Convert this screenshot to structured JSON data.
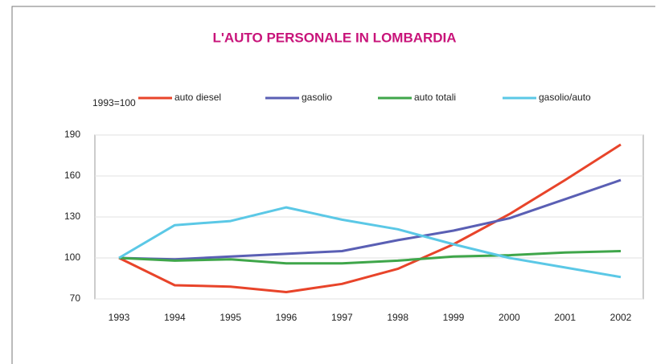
{
  "chart_data": {
    "type": "line",
    "title": "L'AUTO PERSONALE IN LOMBARDIA",
    "y_label": "1993=100",
    "categories": [
      "1993",
      "1994",
      "1995",
      "1996",
      "1997",
      "1998",
      "1999",
      "2000",
      "2001",
      "2002"
    ],
    "series": [
      {
        "name": "auto diesel",
        "color": "#e8442a",
        "values": [
          100,
          80,
          79,
          75,
          81,
          92,
          110,
          132,
          157,
          183
        ]
      },
      {
        "name": "gasolio",
        "color": "#5a5fb4",
        "values": [
          100,
          99,
          101,
          103,
          105,
          113,
          120,
          129,
          143,
          157
        ]
      },
      {
        "name": "auto totali",
        "color": "#3fa64a",
        "values": [
          100,
          98,
          99,
          96,
          96,
          98,
          101,
          102,
          104,
          105
        ]
      },
      {
        "name": "gasolio/auto",
        "color": "#5bc8e6",
        "values": [
          100,
          124,
          127,
          137,
          128,
          121,
          110,
          100,
          93,
          86
        ]
      }
    ],
    "ylim": [
      70,
      190
    ],
    "yticks": [
      70,
      100,
      130,
      160,
      190
    ],
    "grid": true
  }
}
